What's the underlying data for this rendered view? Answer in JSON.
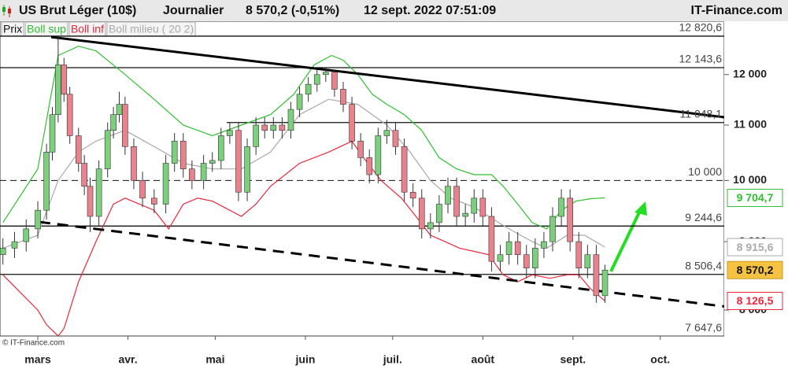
{
  "chart_data": {
    "type": "candlestick",
    "title": "US Brut Léger (10$)",
    "period": "Journalier",
    "price": "8 570,2 (-0,51%)",
    "datetime": "12 sept. 2022 07:51:09",
    "site": "IT-Finance.com",
    "copyright": "© IT-Finance.com",
    "log_scale": true,
    "xlim": [
      -13,
      236
    ],
    "xticks": [
      {
        "value": 0,
        "label": "mars"
      },
      {
        "value": 31,
        "label": "avr."
      },
      {
        "value": 61,
        "label": "mai"
      },
      {
        "value": 92,
        "label": "juin"
      },
      {
        "value": 122,
        "label": "juil."
      },
      {
        "value": 153,
        "label": "août"
      },
      {
        "value": 184,
        "label": "sept."
      },
      {
        "value": 214,
        "label": "oct."
      }
    ],
    "ylim": [
      7620,
      13100
    ],
    "yticks": [
      {
        "value": 12000,
        "label": "12 000"
      },
      {
        "value": 11000,
        "label": "11 000"
      },
      {
        "value": 10000,
        "label": "10 000"
      },
      {
        "value": 9000,
        "label": "9 000"
      },
      {
        "value": 8000,
        "label": "8 000"
      }
    ],
    "candles": {
      "name": "Prix",
      "up_color": "#7ccf7c",
      "down_color": "#e8828c",
      "last_label": "8 570,2",
      "x": [
        -12,
        -8,
        -4,
        0,
        3,
        5,
        7,
        9,
        11,
        14,
        16,
        18,
        21,
        24,
        26,
        28,
        30,
        33,
        36,
        40,
        44,
        47,
        50,
        53,
        57,
        60,
        63,
        66,
        69,
        72,
        75,
        78,
        81,
        84,
        87,
        90,
        93,
        96,
        99,
        102,
        105,
        108,
        111,
        114,
        117,
        120,
        123,
        126,
        129,
        132,
        135,
        138,
        141,
        144,
        147,
        150,
        153,
        156,
        159,
        162,
        165,
        168,
        171,
        174,
        177,
        180,
        183,
        186,
        189,
        192,
        195
      ],
      "open": [
        8800,
        8900,
        9000,
        9200,
        9500,
        10500,
        11200,
        12200,
        11600,
        10800,
        10300,
        9900,
        9400,
        10200,
        10900,
        11200,
        11400,
        10600,
        10000,
        9700,
        9600,
        10300,
        10700,
        10200,
        10000,
        10300,
        10350,
        10800,
        10900,
        9800,
        10600,
        11000,
        10900,
        11000,
        10900,
        11300,
        11600,
        11800,
        12000,
        12050,
        11700,
        11400,
        10700,
        10400,
        10100,
        10800,
        10900,
        10600,
        9800,
        9700,
        9200,
        9300,
        9600,
        9900,
        9400,
        9450,
        9700,
        9400,
        8700,
        8800,
        9000,
        8800,
        8600,
        8900,
        9000,
        9400,
        9700,
        9000,
        8600,
        8800,
        8200
      ],
      "high": [
        9050,
        9150,
        9350,
        9650,
        10650,
        11350,
        12820.6,
        12350,
        11750,
        10950,
        10450,
        10050,
        10350,
        11050,
        11350,
        11650,
        11550,
        10750,
        10150,
        9850,
        10450,
        10850,
        10850,
        10350,
        10450,
        10500,
        10950,
        11050,
        11050,
        10750,
        11150,
        11150,
        11150,
        11150,
        11450,
        11750,
        11950,
        12100,
        12143.6,
        12100,
        11850,
        11550,
        10850,
        10550,
        10950,
        11100,
        11050,
        10750,
        9950,
        9850,
        9450,
        9750,
        10050,
        10050,
        9600,
        9850,
        9850,
        9550,
        8950,
        9150,
        9150,
        8950,
        9050,
        9150,
        9550,
        9850,
        9850,
        9150,
        8950,
        8950,
        8650
      ],
      "low": [
        8650,
        8750,
        8850,
        9050,
        9350,
        10350,
        11050,
        11450,
        10650,
        10150,
        9750,
        9150,
        9250,
        10050,
        10750,
        11050,
        10450,
        9850,
        9550,
        9450,
        9450,
        10150,
        10050,
        9850,
        9850,
        10150,
        10200,
        10650,
        9650,
        9650,
        10450,
        10750,
        10750,
        10750,
        10750,
        11150,
        11450,
        11650,
        11850,
        11550,
        11250,
        10550,
        10250,
        9950,
        9950,
        10650,
        10450,
        9650,
        9550,
        9050,
        9050,
        9150,
        9450,
        9250,
        9250,
        9300,
        9250,
        8550,
        8550,
        8650,
        8650,
        8450,
        8450,
        8750,
        8850,
        9250,
        8850,
        8450,
        8450,
        8100,
        8100
      ],
      "close": [
        8900,
        9000,
        9200,
        9500,
        10500,
        11200,
        12200,
        11600,
        10800,
        10300,
        9900,
        9400,
        10200,
        10900,
        11200,
        11400,
        10600,
        10000,
        9700,
        9600,
        10300,
        10700,
        10200,
        10000,
        10300,
        10350,
        10800,
        10900,
        9800,
        10600,
        11000,
        10900,
        11000,
        10900,
        11300,
        11600,
        11800,
        12000,
        12050,
        11700,
        11400,
        10700,
        10400,
        10100,
        10800,
        10900,
        10600,
        9800,
        9700,
        9200,
        9300,
        9600,
        9900,
        9400,
        9450,
        9700,
        9400,
        8700,
        8800,
        9000,
        8800,
        8600,
        8900,
        9000,
        9400,
        9700,
        9000,
        8600,
        8800,
        8200,
        8570.2
      ]
    },
    "series": [
      {
        "name": "Boll sup",
        "color": "#2fbf2f",
        "last_label": "9 704,7",
        "x": [
          -12,
          0,
          7,
          14,
          20,
          30,
          40,
          50,
          60,
          70,
          80,
          88,
          95,
          101,
          105,
          110,
          115,
          120,
          126,
          132,
          138,
          144,
          150,
          156,
          160,
          165,
          170,
          175,
          180,
          185,
          190,
          195
        ],
        "values": [
          9300,
          10200,
          12400,
          12600,
          12500,
          12000,
          11500,
          11000,
          10800,
          11000,
          11200,
          11600,
          12200,
          12400,
          12300,
          12000,
          11600,
          11400,
          11200,
          10900,
          10400,
          10200,
          10100,
          10100,
          9900,
          9600,
          9300,
          9200,
          9500,
          9650,
          9690,
          9704.7
        ]
      },
      {
        "name": "Boll inf",
        "color": "#e8283c",
        "last_label": "8 126,5",
        "x": [
          -12,
          0,
          3,
          7,
          9,
          14,
          20,
          26,
          30,
          40,
          45,
          50,
          55,
          60,
          70,
          75,
          80,
          90,
          100,
          108,
          112,
          118,
          125,
          130,
          135,
          140,
          145,
          150,
          155,
          160,
          165,
          170,
          176,
          182,
          186,
          190,
          195
        ],
        "values": [
          8500,
          8000,
          7800,
          7650,
          7750,
          8400,
          9000,
          9600,
          9700,
          9500,
          9200,
          9600,
          9700,
          9650,
          9400,
          9600,
          9900,
          10300,
          10500,
          10700,
          10400,
          10000,
          9700,
          9400,
          9100,
          9000,
          8900,
          8850,
          8800,
          8500,
          8400,
          8500,
          8450,
          8500,
          8500,
          8300,
          8126.5
        ]
      },
      {
        "name": "Boll milieu ( 20 2)",
        "color": "#aaaaaa",
        "last_label": "8 915,6",
        "x": [
          -12,
          0,
          7,
          14,
          20,
          30,
          40,
          50,
          60,
          70,
          80,
          90,
          100,
          110,
          120,
          128,
          135,
          142,
          150,
          155,
          162,
          170,
          175,
          182,
          188,
          195
        ],
        "values": [
          8900,
          9100,
          10000,
          10500,
          10700,
          10900,
          10600,
          10300,
          10200,
          10200,
          10500,
          11200,
          11500,
          11400,
          11000,
          10500,
          10000,
          9700,
          9550,
          9400,
          9200,
          9000,
          8900,
          9100,
          9100,
          8915.6
        ]
      }
    ],
    "trendlines": [
      {
        "x": [
          4.6,
          236
        ],
        "values": [
          12800,
          11150
        ],
        "dashed": false
      },
      {
        "x": [
          0.5,
          236
        ],
        "values": [
          9310,
          8050
        ],
        "dashed": true
      }
    ],
    "levels": [
      {
        "value": 12820.6,
        "label": "12 820,6",
        "dashed": false
      },
      {
        "value": 12143.6,
        "label": "12 143,6",
        "dashed": false
      },
      {
        "value": 11048.1,
        "label": "11 048,1",
        "dashed": false
      },
      {
        "value": 10000,
        "label": "10 000",
        "dashed": true
      },
      {
        "value": 9244.6,
        "label": "9 244,6",
        "dashed": false
      },
      {
        "value": 8506.4,
        "label": "8 506,4",
        "dashed": false
      },
      {
        "value": 7647.6,
        "label": "7 647,6",
        "dashed": false
      }
    ]
  }
}
